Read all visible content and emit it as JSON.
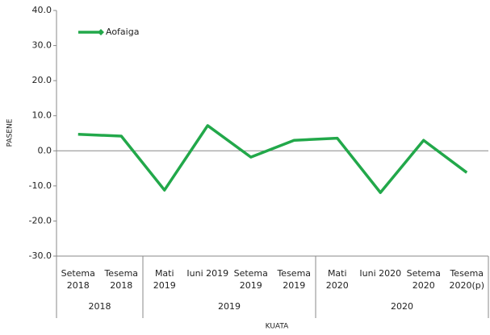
{
  "chart_data": {
    "type": "line",
    "x_label": "KUATA",
    "y_label": "PASENE",
    "categories": [
      "Setema\n2018",
      "Tesema\n2018",
      "Mati\n2019",
      "Iuni 2019",
      "Setema\n2019",
      "Tesema\n2019",
      "Mati\n2020",
      "Iuni 2020",
      "Setema\n2020",
      "Tesema\n2020(p)"
    ],
    "groups": [
      {
        "label": "2018",
        "span": 2
      },
      {
        "label": "2019",
        "span": 4
      },
      {
        "label": "2020",
        "span": 4
      }
    ],
    "series": [
      {
        "name": "Aofaiga",
        "color": "#22a84a",
        "values": [
          4.7,
          4.2,
          -11.2,
          7.2,
          -1.8,
          3.0,
          3.6,
          -11.9,
          3.0,
          -6.2
        ]
      }
    ],
    "ylim": [
      -30,
      40
    ],
    "yticks": [
      {
        "value": -30,
        "label": "-30.0"
      },
      {
        "value": -20,
        "label": "-20.0"
      },
      {
        "value": -10,
        "label": "-10.0"
      },
      {
        "value": 0,
        "label": "0.0"
      },
      {
        "value": 10,
        "label": "10.0"
      },
      {
        "value": 20,
        "label": "20.0"
      },
      {
        "value": 30,
        "label": "30.0"
      },
      {
        "value": 40,
        "label": "40.0"
      }
    ],
    "legend": "top-left"
  }
}
